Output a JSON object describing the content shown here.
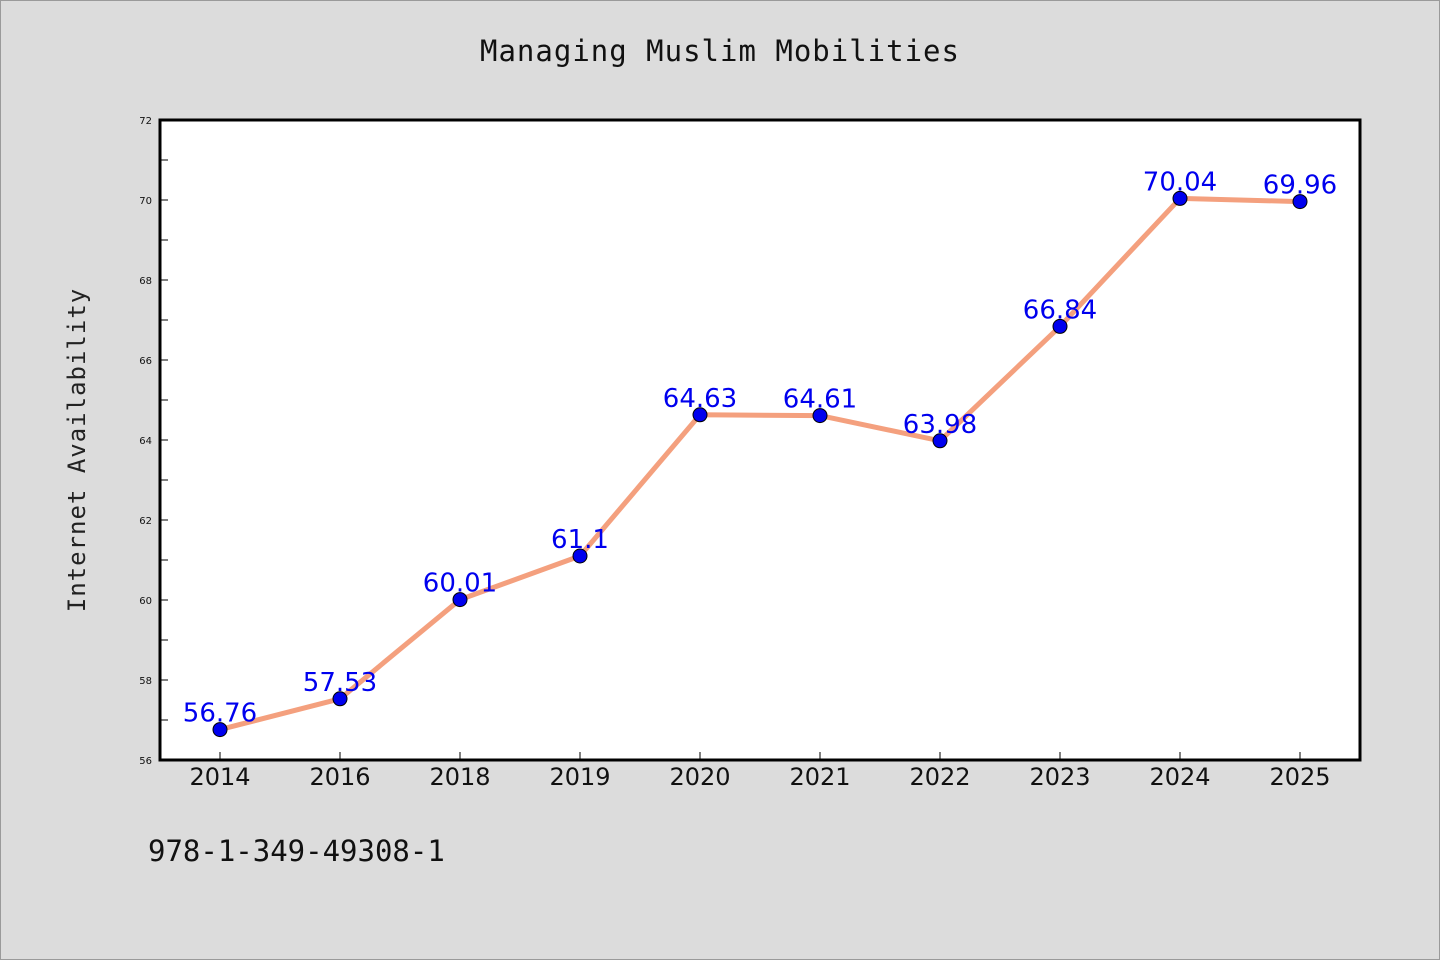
{
  "chart_data": {
    "type": "line",
    "title": "Managing Muslim Mobilities",
    "ylabel": "Internet Availability",
    "xlabel": "",
    "categories": [
      "2014",
      "2016",
      "2018",
      "2019",
      "2020",
      "2021",
      "2022",
      "2023",
      "2024",
      "2025"
    ],
    "series": [
      {
        "values": [
          56.76,
          57.53,
          60.01,
          61.1,
          64.63,
          64.61,
          63.98,
          66.84,
          70.04,
          69.96
        ],
        "labels": [
          "56.76",
          "57.53",
          "60.01",
          "61.1",
          "64.63",
          "64.61",
          "63.98",
          "66.84",
          "70.04",
          "69.96"
        ],
        "line_color": "#f4a07e",
        "marker_color": "#0000ee",
        "label_color": "#0000ee"
      }
    ],
    "ylim": [
      56,
      72
    ],
    "yticks": [
      56,
      58,
      60,
      62,
      64,
      66,
      68,
      70,
      72
    ],
    "grid": false,
    "legend": false
  },
  "annotation": "978-1-349-49308-1"
}
